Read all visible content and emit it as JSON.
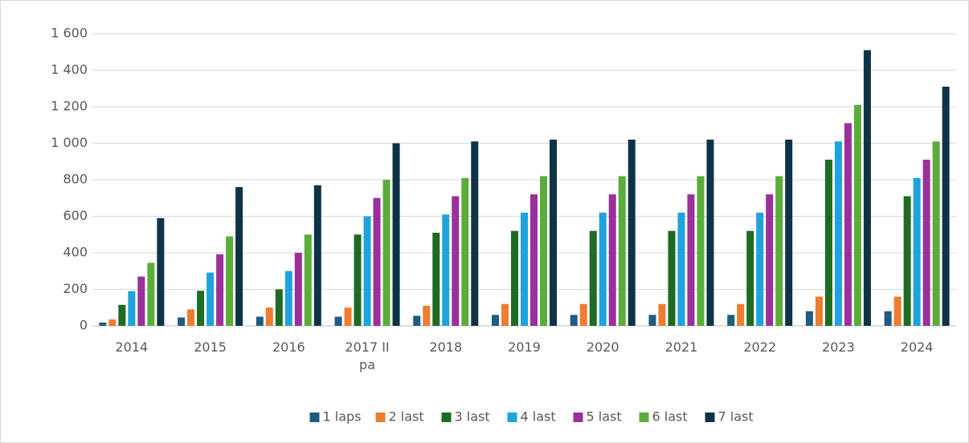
{
  "chart_data": {
    "type": "bar",
    "categories": [
      "2014",
      "2015",
      "2016",
      "2017 II pa",
      "2018",
      "2019",
      "2020",
      "2021",
      "2022",
      "2023",
      "2024"
    ],
    "series": [
      {
        "name": "1 laps",
        "color": "#1f5c7f",
        "values": [
          18,
          46,
          50,
          50,
          55,
          60,
          60,
          60,
          60,
          80,
          80
        ]
      },
      {
        "name": "2 last",
        "color": "#ed7d31",
        "values": [
          35,
          90,
          100,
          100,
          110,
          120,
          120,
          120,
          120,
          160,
          160
        ]
      },
      {
        "name": "3 last",
        "color": "#1e6b24",
        "values": [
          115,
          192,
          200,
          500,
          510,
          520,
          520,
          520,
          520,
          910,
          710
        ]
      },
      {
        "name": "4 last",
        "color": "#1ea3dc",
        "values": [
          190,
          292,
          300,
          600,
          610,
          620,
          620,
          620,
          620,
          1010,
          810
        ]
      },
      {
        "name": "5 last",
        "color": "#9b2f9b",
        "values": [
          270,
          392,
          400,
          700,
          710,
          720,
          720,
          720,
          720,
          1110,
          910
        ]
      },
      {
        "name": "6 last",
        "color": "#5aad3a",
        "values": [
          345,
          490,
          500,
          800,
          810,
          820,
          820,
          820,
          820,
          1210,
          1010
        ]
      },
      {
        "name": "7 last",
        "color": "#0f3346",
        "values": [
          590,
          760,
          770,
          1000,
          1010,
          1020,
          1020,
          1020,
          1020,
          1510,
          1310
        ]
      }
    ],
    "ylim": [
      0,
      1600
    ],
    "yticks": [
      0,
      200,
      400,
      600,
      800,
      {
        "value": 1000,
        "label": "1 000"
      },
      {
        "value": 1200,
        "label": "1 200"
      },
      {
        "value": 1400,
        "label": "1 400"
      },
      {
        "value": 1600,
        "label": "1 600"
      }
    ],
    "grid": true,
    "legend": "bottom"
  }
}
